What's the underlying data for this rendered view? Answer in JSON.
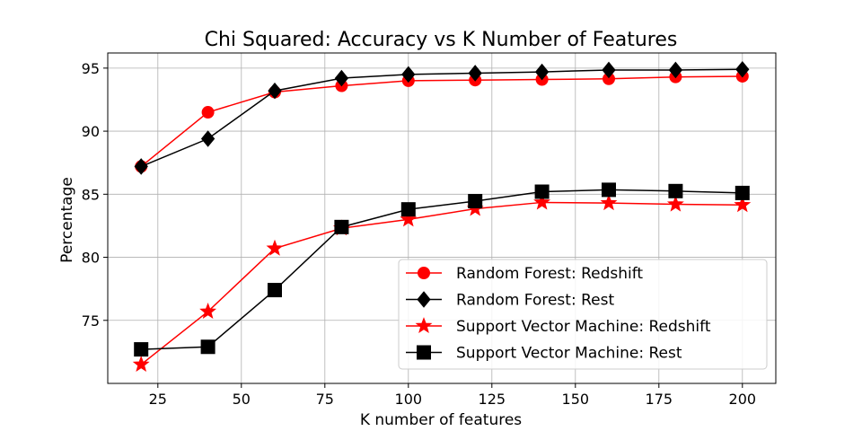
{
  "chart_data": {
    "type": "line",
    "title": "Chi Squared: Accuracy vs K Number of Features",
    "xlabel": "K number of features",
    "ylabel": "Percentage",
    "xlim": [
      10,
      210
    ],
    "ylim": [
      70.0,
      96.2
    ],
    "xticks": [
      25,
      50,
      75,
      100,
      125,
      150,
      175,
      200
    ],
    "yticks": [
      75,
      80,
      85,
      90,
      95
    ],
    "grid": true,
    "legend_position": "lower-right",
    "x": [
      20,
      40,
      60,
      80,
      100,
      120,
      140,
      160,
      180,
      200
    ],
    "series": [
      {
        "name": "Random Forest: Redshift",
        "color": "#ff0000",
        "marker": "circle",
        "values": [
          87.2,
          91.5,
          93.1,
          93.6,
          94.0,
          94.05,
          94.1,
          94.15,
          94.3,
          94.35
        ]
      },
      {
        "name": "Random Forest: Rest",
        "color": "#000000",
        "marker": "diamond",
        "values": [
          87.2,
          89.4,
          93.2,
          94.2,
          94.5,
          94.6,
          94.7,
          94.85,
          94.85,
          94.9
        ]
      },
      {
        "name": "Support Vector Machine: Redshift",
        "color": "#ff0000",
        "marker": "star",
        "values": [
          71.5,
          75.7,
          80.7,
          82.3,
          83.0,
          83.85,
          84.35,
          84.3,
          84.2,
          84.15
        ]
      },
      {
        "name": "Support Vector Machine: Rest",
        "color": "#000000",
        "marker": "square",
        "values": [
          72.7,
          72.9,
          77.4,
          82.4,
          83.8,
          84.45,
          85.2,
          85.35,
          85.25,
          85.1
        ]
      }
    ]
  }
}
